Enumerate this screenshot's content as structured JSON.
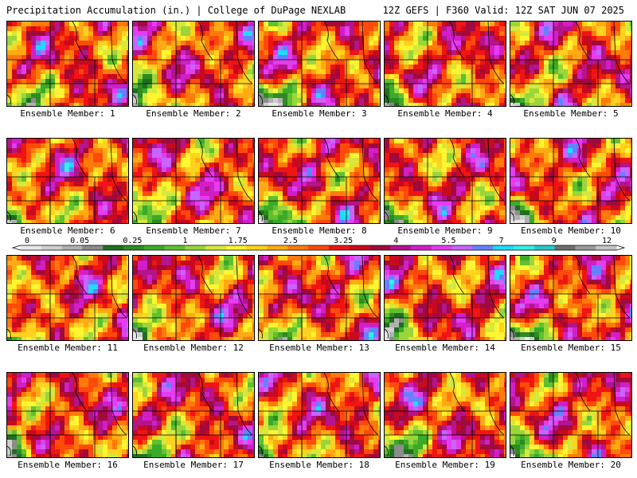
{
  "header": {
    "left": "Precipitation Accumulation (in.) | College of DuPage NEXLAB",
    "right": "12Z GEFS | F360 Valid: 12Z SAT JUN 07 2025"
  },
  "members": [
    {
      "label": "Ensemble Member: 1",
      "number": 1
    },
    {
      "label": "Ensemble Member: 2",
      "number": 2
    },
    {
      "label": "Ensemble Member: 3",
      "number": 3
    },
    {
      "label": "Ensemble Member: 4",
      "number": 4
    },
    {
      "label": "Ensemble Member: 5",
      "number": 5
    },
    {
      "label": "Ensemble Member: 6",
      "number": 6
    },
    {
      "label": "Ensemble Member: 7",
      "number": 7
    },
    {
      "label": "Ensemble Member: 8",
      "number": 8
    },
    {
      "label": "Ensemble Member: 9",
      "number": 9
    },
    {
      "label": "Ensemble Member: 10",
      "number": 10
    },
    {
      "label": "Ensemble Member: 11",
      "number": 11
    },
    {
      "label": "Ensemble Member: 12",
      "number": 12
    },
    {
      "label": "Ensemble Member: 13",
      "number": 13
    },
    {
      "label": "Ensemble Member: 14",
      "number": 14
    },
    {
      "label": "Ensemble Member: 15",
      "number": 15
    },
    {
      "label": "Ensemble Member: 16",
      "number": 16
    },
    {
      "label": "Ensemble Member: 17",
      "number": 17
    },
    {
      "label": "Ensemble Member: 18",
      "number": 18
    },
    {
      "label": "Ensemble Member: 19",
      "number": 19
    },
    {
      "label": "Ensemble Member: 20",
      "number": 20
    }
  ],
  "colorbar": {
    "labels": [
      "0",
      "0.05",
      "0.25",
      "1",
      "1.75",
      "2.5",
      "3.25",
      "4",
      "5.5",
      "7",
      "9",
      "12"
    ],
    "colors": [
      "#e8e8e8",
      "#cfcfcf",
      "#b0b0b0",
      "#8c8c8c",
      "#1f6f1f",
      "#2e8b22",
      "#3caa28",
      "#60c030",
      "#9ad63a",
      "#d6e83c",
      "#fff530",
      "#ffd21e",
      "#ffaa14",
      "#ff7a0a",
      "#ff4a0a",
      "#f01414",
      "#c80a1e",
      "#a00a3c",
      "#b4148c",
      "#d21ec8",
      "#e63cf0",
      "#c864ff",
      "#6482ff",
      "#1edcff",
      "#32f0e6",
      "#28c8c8",
      "#6e6e6e",
      "#9a9a9a",
      "#c4c4c4"
    ]
  }
}
